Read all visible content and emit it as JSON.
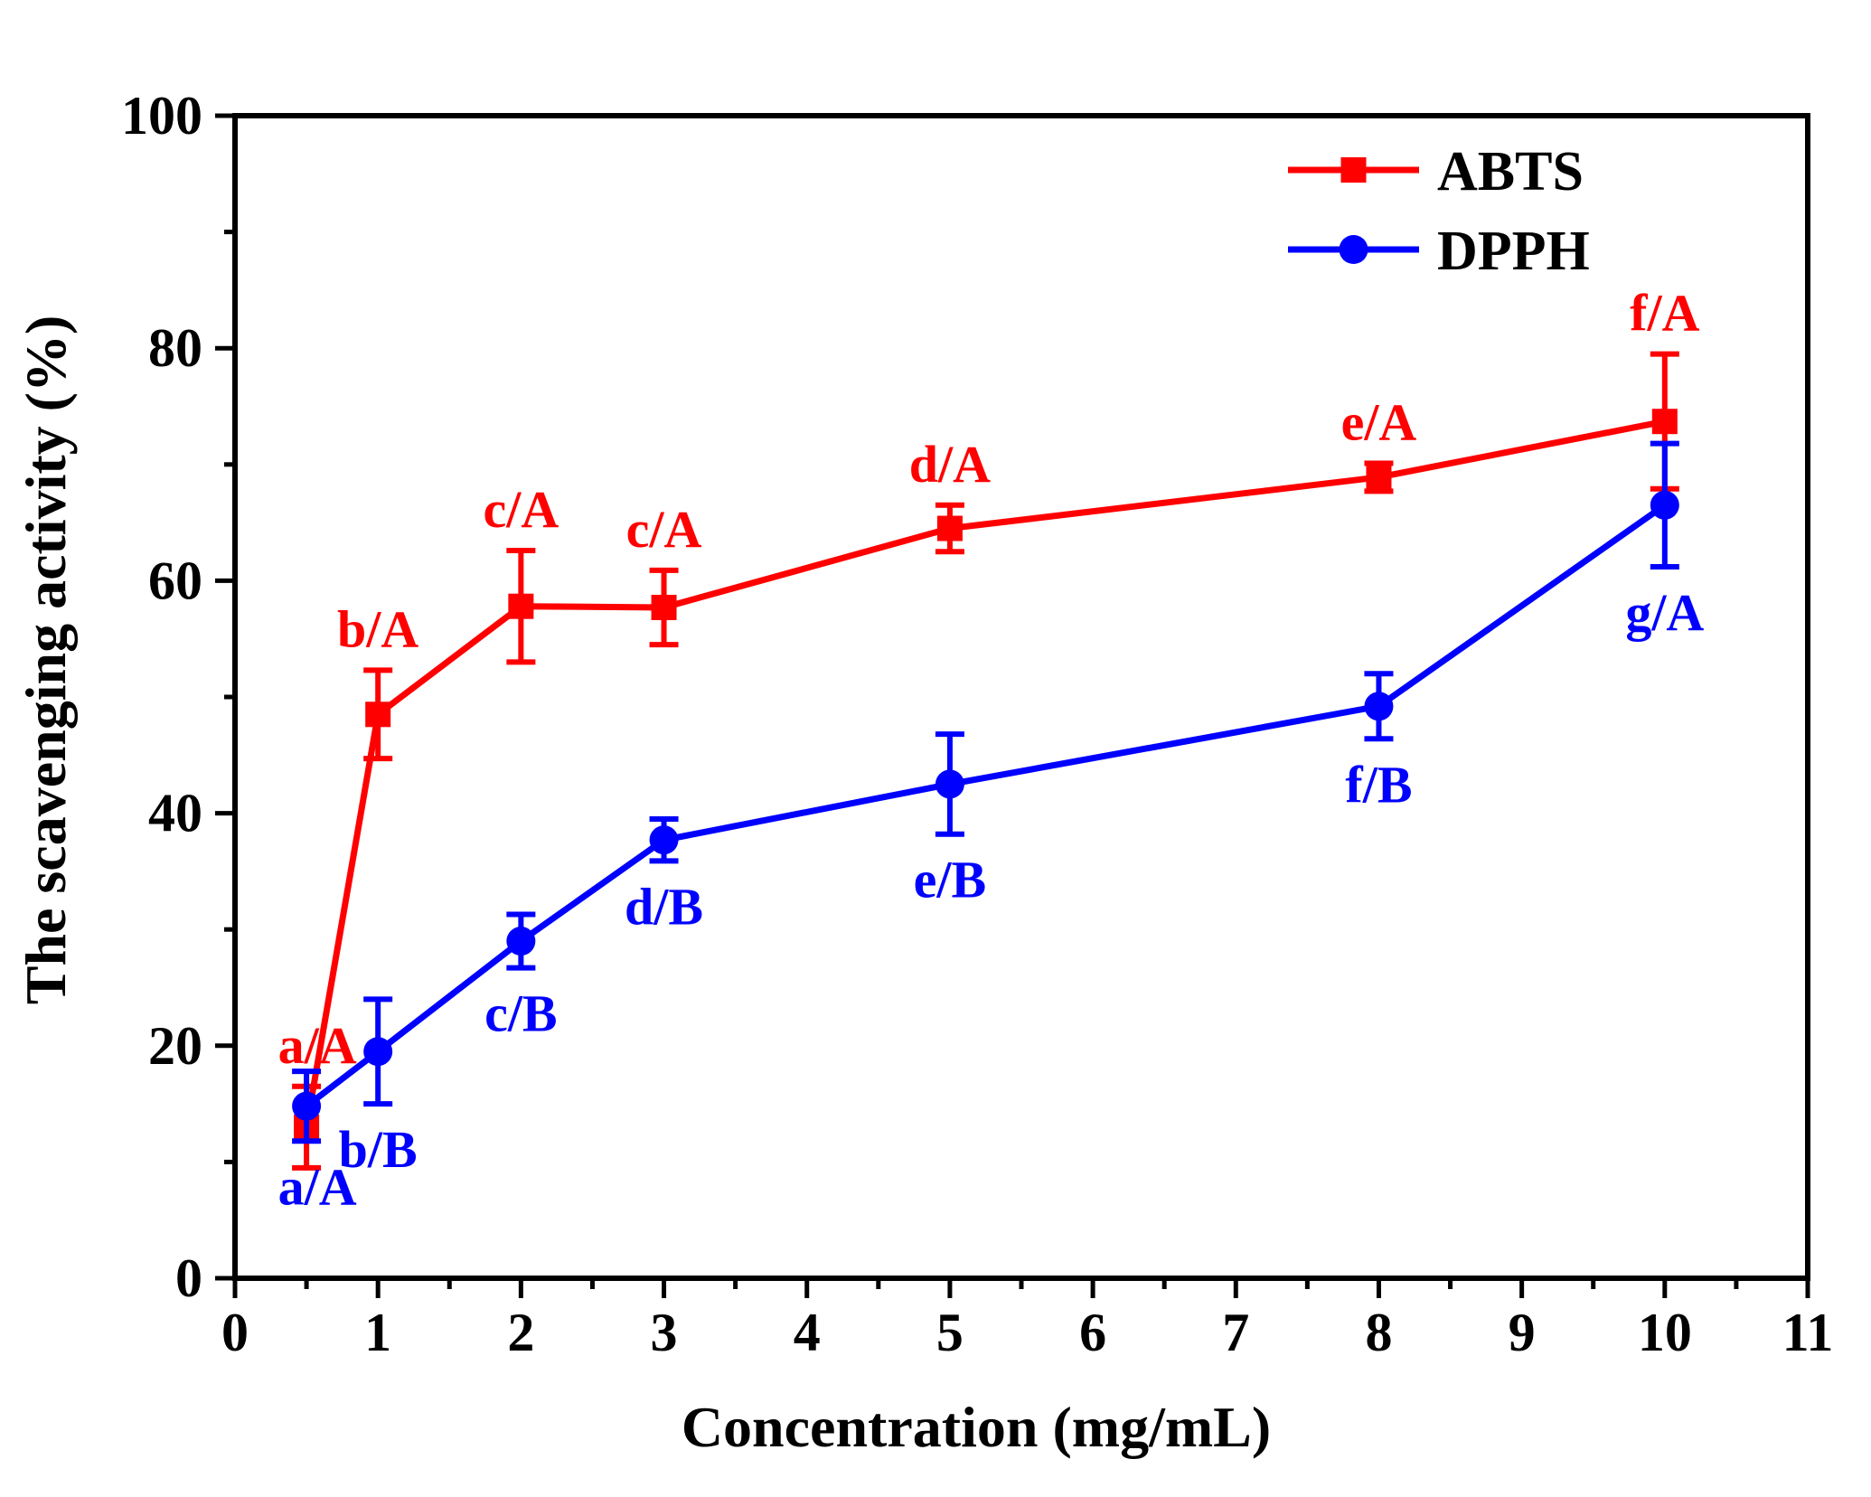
{
  "chart_data": {
    "type": "line",
    "title": "",
    "xlabel": "Concentration (mg/mL)",
    "ylabel": "The scavenging activity (%)",
    "xlim": [
      0,
      11
    ],
    "ylim": [
      0,
      100
    ],
    "x_ticks": [
      0,
      1,
      2,
      3,
      4,
      5,
      6,
      7,
      8,
      9,
      10,
      11
    ],
    "y_ticks": [
      0,
      20,
      40,
      60,
      80,
      100
    ],
    "legend_position": "top-right",
    "grid": false,
    "series": [
      {
        "name": "ABTS",
        "color": "#ff0000",
        "marker": "square",
        "label_position": "above",
        "points": [
          {
            "x": 0.5,
            "y": 13.0,
            "err": 3.5,
            "label": "a/A"
          },
          {
            "x": 1,
            "y": 48.5,
            "err": 3.8,
            "label": "b/A"
          },
          {
            "x": 2,
            "y": 57.8,
            "err": 4.8,
            "label": "c/A"
          },
          {
            "x": 3,
            "y": 57.7,
            "err": 3.2,
            "label": "c/A"
          },
          {
            "x": 5,
            "y": 64.5,
            "err": 2.0,
            "label": "d/A"
          },
          {
            "x": 8,
            "y": 68.9,
            "err": 1.2,
            "label": "e/A"
          },
          {
            "x": 10,
            "y": 73.7,
            "err": 5.8,
            "label": "f/A"
          }
        ]
      },
      {
        "name": "DPPH",
        "color": "#0000ff",
        "marker": "circle",
        "label_position": "below",
        "points": [
          {
            "x": 0.5,
            "y": 14.8,
            "err": 3.0,
            "label": "a/A"
          },
          {
            "x": 1,
            "y": 19.5,
            "err": 4.5,
            "label": "b/B"
          },
          {
            "x": 2,
            "y": 29.0,
            "err": 2.3,
            "label": "c/B"
          },
          {
            "x": 3,
            "y": 37.7,
            "err": 1.8,
            "label": "d/B"
          },
          {
            "x": 5,
            "y": 42.5,
            "err": 4.3,
            "label": "e/B"
          },
          {
            "x": 8,
            "y": 49.2,
            "err": 2.8,
            "label": "f/B"
          },
          {
            "x": 10,
            "y": 66.5,
            "err": 5.3,
            "label": "g/A"
          }
        ]
      }
    ]
  }
}
